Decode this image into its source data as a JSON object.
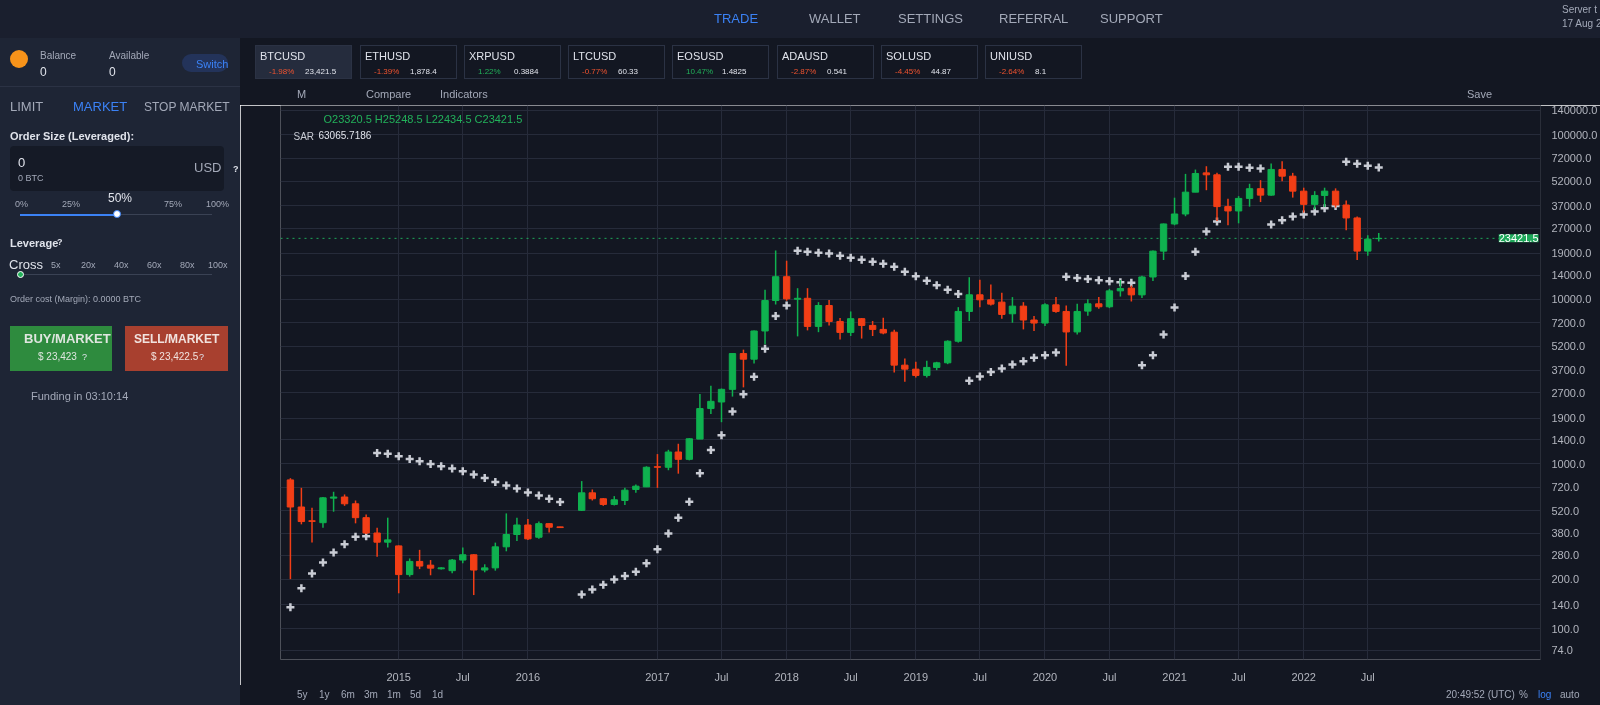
{
  "chart_data": {
    "type": "candlestick",
    "x": [
      "2014-03",
      "2014-04",
      "2014-05",
      "2014-06",
      "2014-07",
      "2014-08",
      "2014-09",
      "2014-10",
      "2014-11",
      "2014-12",
      "2015-01",
      "2015-02",
      "2015-03",
      "2015-04",
      "2015-05",
      "2015-06",
      "2015-07",
      "2015-08",
      "2015-09",
      "2015-10",
      "2015-11",
      "2015-12",
      "2016-01",
      "2016-02",
      "2016-03",
      "2016-04",
      "2016-06",
      "2016-07",
      "2016-08",
      "2016-09",
      "2016-10",
      "2016-11",
      "2016-12",
      "2017-01",
      "2017-02",
      "2017-03",
      "2017-04",
      "2017-05",
      "2017-06",
      "2017-07",
      "2017-08",
      "2017-09",
      "2017-10",
      "2017-11",
      "2017-12",
      "2018-01",
      "2018-02",
      "2018-03",
      "2018-04",
      "2018-05",
      "2018-06",
      "2018-07",
      "2018-08",
      "2018-09",
      "2018-10",
      "2018-11",
      "2018-12",
      "2019-01",
      "2019-02",
      "2019-03",
      "2019-04",
      "2019-05",
      "2019-06",
      "2019-07",
      "2019-08",
      "2019-09",
      "2019-10",
      "2019-11",
      "2019-12",
      "2020-01",
      "2020-02",
      "2020-03",
      "2020-04",
      "2020-05",
      "2020-06",
      "2020-07",
      "2020-08",
      "2020-09",
      "2020-10",
      "2020-11",
      "2020-12",
      "2021-01",
      "2021-02",
      "2021-03",
      "2021-04",
      "2021-05",
      "2021-06",
      "2021-07",
      "2021-08",
      "2021-09",
      "2021-10",
      "2021-11",
      "2021-12",
      "2022-01",
      "2022-02",
      "2022-03",
      "2022-04",
      "2022-05",
      "2022-06",
      "2022-07",
      "2022-08"
    ],
    "ohlc": [
      [
        800,
        820,
        200,
        548
      ],
      [
        548,
        716,
        430,
        447
      ],
      [
        452,
        542,
        333,
        448
      ],
      [
        440,
        630,
        410,
        623
      ],
      [
        620,
        678,
        513,
        630
      ],
      [
        630,
        653,
        557,
        573
      ],
      [
        573,
        600,
        436,
        472
      ],
      [
        472,
        494,
        375,
        381
      ],
      [
        381,
        410,
        273,
        335
      ],
      [
        335,
        472,
        311,
        346
      ],
      [
        318,
        320,
        164,
        213
      ],
      [
        213,
        267,
        207,
        256
      ],
      [
        256,
        301,
        230,
        240
      ],
      [
        243,
        261,
        211,
        233
      ],
      [
        231,
        236,
        229,
        234
      ],
      [
        225,
        265,
        217,
        261
      ],
      [
        261,
        311,
        250,
        281
      ],
      [
        281,
        283,
        160,
        227
      ],
      [
        227,
        246,
        220,
        234
      ],
      [
        234,
        333,
        225,
        314
      ],
      [
        314,
        501,
        295,
        373
      ],
      [
        373,
        472,
        341,
        426
      ],
      [
        426,
        464,
        346,
        351
      ],
      [
        359,
        447,
        352,
        434
      ],
      [
        434,
        436,
        383,
        413
      ],
      [
        415,
        416,
        410,
        411
      ],
      [
        523,
        787,
        518,
        668
      ],
      [
        668,
        700,
        600,
        615
      ],
      [
        615,
        620,
        557,
        568
      ],
      [
        568,
        638,
        560,
        606
      ],
      [
        600,
        716,
        563,
        693
      ],
      [
        700,
        750,
        668,
        733
      ],
      [
        726,
        968,
        724,
        955
      ],
      [
        962,
        1148,
        716,
        955
      ],
      [
        955,
        1219,
        916,
        1182
      ],
      [
        1182,
        1326,
        873,
        1067
      ],
      [
        1067,
        1433,
        1052,
        1422
      ],
      [
        1416,
        2658,
        1416,
        2169
      ],
      [
        2169,
        2988,
        2013,
        2400
      ],
      [
        2378,
        2870,
        1793,
        2838
      ],
      [
        2838,
        4680,
        2564,
        4680
      ],
      [
        4680,
        4944,
        2917,
        4325
      ],
      [
        4325,
        6470,
        4074,
        6416
      ],
      [
        6416,
        11400,
        5326,
        9826
      ],
      [
        9826,
        19770,
        9290,
        13700
      ],
      [
        13700,
        17130,
        9800,
        10050
      ],
      [
        10000,
        11670,
        5950,
        10130
      ],
      [
        10130,
        11670,
        6470,
        6840
      ],
      [
        6840,
        9600,
        6310,
        9160
      ],
      [
        9160,
        9910,
        6935,
        7330
      ],
      [
        7330,
        7690,
        5690,
        6290
      ],
      [
        6290,
        8430,
        5980,
        7620
      ],
      [
        7620,
        7690,
        5770,
        6935
      ],
      [
        6935,
        7380,
        5980,
        6560
      ],
      [
        6560,
        7730,
        6120,
        6240
      ],
      [
        6310,
        6530,
        3597,
        3980
      ],
      [
        3980,
        4365,
        3157,
        3763
      ],
      [
        3763,
        4170,
        3350,
        3447
      ],
      [
        3447,
        4230,
        3350,
        3855
      ],
      [
        3855,
        4170,
        3710,
        4112
      ],
      [
        4112,
        5630,
        4035,
        5560
      ],
      [
        5560,
        8950,
        5455,
        8430
      ],
      [
        8430,
        13600,
        7380,
        10640
      ],
      [
        10640,
        13150,
        8950,
        9920
      ],
      [
        9920,
        12270,
        9160,
        9340
      ],
      [
        9600,
        10930,
        7620,
        8085
      ],
      [
        8160,
        10300,
        7200,
        9080
      ],
      [
        9080,
        9600,
        6560,
        7480
      ],
      [
        7480,
        7910,
        6420,
        7170
      ],
      [
        7170,
        9470,
        6880,
        9250
      ],
      [
        9250,
        10300,
        8280,
        8430
      ],
      [
        8430,
        9160,
        3945,
        6330
      ],
      [
        6330,
        9380,
        6100,
        8430
      ],
      [
        8470,
        10000,
        7940,
        9380
      ],
      [
        9380,
        10330,
        8750,
        9000
      ],
      [
        9000,
        11560,
        8830,
        11240
      ],
      [
        11240,
        13090,
        10380,
        11610
      ],
      [
        11670,
        12100,
        9690,
        10630
      ],
      [
        10630,
        13900,
        10190,
        13650
      ],
      [
        13650,
        19750,
        12900,
        19590
      ],
      [
        19590,
        28800,
        17300,
        28640
      ],
      [
        28640,
        41350,
        28120,
        32920
      ],
      [
        32920,
        57680,
        31900,
        44670
      ],
      [
        44670,
        61260,
        44670,
        58000
      ],
      [
        58500,
        64200,
        45900,
        56930
      ],
      [
        56930,
        58500,
        29900,
        36500
      ],
      [
        36500,
        40740,
        28120,
        34350
      ],
      [
        34350,
        42270,
        28900,
        40930
      ],
      [
        40930,
        50230,
        36500,
        46880
      ],
      [
        46880,
        52840,
        38900,
        42850
      ],
      [
        42850,
        66680,
        42530,
        61380
      ],
      [
        61380,
        68840,
        52100,
        55850
      ],
      [
        55850,
        58500,
        41400,
        45300
      ],
      [
        45300,
        47550,
        33570,
        37670
      ],
      [
        37670,
        45300,
        35160,
        42660
      ],
      [
        42660,
        47550,
        36300,
        45300
      ],
      [
        45300,
        47100,
        35970,
        37330
      ],
      [
        37330,
        39810,
        26240,
        31150
      ],
      [
        31150,
        31750,
        17300,
        19600
      ],
      [
        19600,
        24490,
        18370,
        23170
      ],
      [
        23320.5,
        25248.5,
        22434.5,
        23421.5
      ]
    ],
    "colors": [
      "#f23e16",
      "#f23e16",
      "#f23e16",
      "#0fb14f",
      "#0fb14f",
      "#f23e16",
      "#f23e16",
      "#f23e16",
      "#f23e16",
      "#0fb14f",
      "#f23e16",
      "#0fb14f",
      "#f23e16",
      "#f23e16",
      "#0fb14f",
      "#0fb14f",
      "#0fb14f",
      "#f23e16",
      "#0fb14f",
      "#0fb14f",
      "#0fb14f",
      "#0fb14f",
      "#f23e16",
      "#0fb14f",
      "#f23e16",
      "#f23e16",
      "#0fb14f",
      "#f23e16",
      "#f23e16",
      "#0fb14f",
      "#0fb14f",
      "#0fb14f",
      "#0fb14f",
      "#f23e16",
      "#0fb14f",
      "#f23e16",
      "#0fb14f",
      "#0fb14f",
      "#0fb14f",
      "#0fb14f",
      "#0fb14f",
      "#f23e16",
      "#0fb14f",
      "#0fb14f",
      "#0fb14f",
      "#f23e16",
      "#0fb14f",
      "#f23e16",
      "#0fb14f",
      "#f23e16",
      "#f23e16",
      "#0fb14f",
      "#f23e16",
      "#f23e16",
      "#f23e16",
      "#f23e16",
      "#f23e16",
      "#f23e16",
      "#0fb14f",
      "#0fb14f",
      "#0fb14f",
      "#0fb14f",
      "#0fb14f",
      "#f23e16",
      "#f23e16",
      "#f23e16",
      "#0fb14f",
      "#f23e16",
      "#f23e16",
      "#0fb14f",
      "#f23e16",
      "#f23e16",
      "#0fb14f",
      "#0fb14f",
      "#f23e16",
      "#0fb14f",
      "#0fb14f",
      "#f23e16",
      "#0fb14f",
      "#0fb14f",
      "#0fb14f",
      "#0fb14f",
      "#0fb14f",
      "#0fb14f",
      "#f23e16",
      "#f23e16",
      "#f23e16",
      "#0fb14f",
      "#0fb14f",
      "#f23e16",
      "#0fb14f",
      "#f23e16",
      "#f23e16",
      "#f23e16",
      "#0fb14f",
      "#0fb14f",
      "#f23e16",
      "#f23e16",
      "#f23e16",
      "#0fb14f",
      "#0fb14f"
    ],
    "series": [
      {
        "name": "SAR",
        "type": "scatter",
        "marker": "cross",
        "color": "#c9ccd4",
        "values": [
          135,
          176,
          216,
          252,
          290,
          326,
          361,
          364,
          1165,
          1154,
          1113,
          1072,
          1038,
          1000,
          969,
          937,
          903,
          862,
          823,
          778,
          740,
          709,
          671,
          644,
          615,
          587,
          161,
          173,
          185,
          199,
          209,
          222,
          250,
          304,
          378,
          472,
          589,
          879,
          1216,
          1496,
          2080,
          2648,
          3385,
          5000,
          7910,
          9160,
          19680,
          19410,
          19140,
          18980,
          18360,
          17860,
          17380,
          16900,
          16430,
          15760,
          14690,
          13770,
          12970,
          12160,
          11400,
          10740,
          3203,
          3397,
          3610,
          3800,
          4018,
          4207,
          4407,
          4570,
          4748,
          13710,
          13460,
          13270,
          13040,
          12860,
          12680,
          12570,
          3980,
          4570,
          6100,
          8910,
          13840,
          19410,
          25760,
          29630,
          63680,
          63680,
          62800,
          62100,
          28420,
          30140,
          31770,
          32680,
          34060,
          35650,
          36810,
          68230,
          66370,
          64560,
          63066
        ]
      }
    ],
    "log": "y",
    "grid": true,
    "xlim": [
      "2014-02-01",
      "2023-11-01"
    ],
    "xticks": [
      {
        "value": "2015-01",
        "label": "2015"
      },
      {
        "value": "2015-07",
        "label": "Jul"
      },
      {
        "value": "2016-01",
        "label": "2016"
      },
      {
        "value": "2017-01",
        "label": "2017"
      },
      {
        "value": "2017-07",
        "label": "Jul"
      },
      {
        "value": "2018-01",
        "label": "2018"
      },
      {
        "value": "2018-07",
        "label": "Jul"
      },
      {
        "value": "2019-01",
        "label": "2019"
      },
      {
        "value": "2019-07",
        "label": "Jul"
      },
      {
        "value": "2020-01",
        "label": "2020"
      },
      {
        "value": "2020-07",
        "label": "Jul"
      },
      {
        "value": "2021-01",
        "label": "2021"
      },
      {
        "value": "2021-07",
        "label": "Jul"
      },
      {
        "value": "2022-01",
        "label": "2022"
      },
      {
        "value": "2022-07",
        "label": "Jul"
      }
    ],
    "ylim": [
      65,
      150000
    ],
    "yticks": [
      {
        "value": 74,
        "label": "74.0"
      },
      {
        "value": 100,
        "label": "100.0"
      },
      {
        "value": 140,
        "label": "140.0"
      },
      {
        "value": 200,
        "label": "200.0"
      },
      {
        "value": 280,
        "label": "280.0"
      },
      {
        "value": 380,
        "label": "380.0"
      },
      {
        "value": 520,
        "label": "520.0"
      },
      {
        "value": 720,
        "label": "720.0"
      },
      {
        "value": 1000,
        "label": "1000.0"
      },
      {
        "value": 1400,
        "label": "1400.0"
      },
      {
        "value": 1900,
        "label": "1900.0"
      },
      {
        "value": 2700,
        "label": "2700.0"
      },
      {
        "value": 3700,
        "label": "3700.0"
      },
      {
        "value": 5200,
        "label": "5200.0"
      },
      {
        "value": 7200,
        "label": "7200.0"
      },
      {
        "value": 10000,
        "label": "10000.0"
      },
      {
        "value": 14000,
        "label": "14000.0"
      },
      {
        "value": 19000,
        "label": "19000.0"
      },
      {
        "value": 27000,
        "label": "27000.0"
      },
      {
        "value": 37000,
        "label": "37000.0"
      },
      {
        "value": 52000,
        "label": "52000.0"
      },
      {
        "value": 72000,
        "label": "72000.0"
      },
      {
        "value": 100000,
        "label": "100000.0"
      },
      {
        "value": 140000,
        "label": "140000.0"
      }
    ],
    "ref_lines": [
      {
        "axis": "y",
        "value": 23421.5,
        "label": "23421.5",
        "color": "#1fa85a",
        "line_style": "dotted"
      }
    ],
    "annotations": [
      "TRADE",
      "WALLET",
      "SETTINGS",
      "REFERRAL",
      "SUPPORT",
      "Server t",
      "17 Aug 2",
      "Balance",
      "0",
      "Available",
      "0",
      "Switch",
      "LIMIT",
      "MARKET",
      "STOP MARKET",
      "Order Size (Leveraged):",
      "0",
      "0 BTC",
      "USD",
      "?",
      "0%",
      "25%",
      "50%",
      "75%",
      "100%",
      "Leverage",
      "?",
      "Cross",
      "5x",
      "20x",
      "40x",
      "60x",
      "80x",
      "100x",
      "Order cost (Margin): 0.0000 BTC",
      "BUY/MARKET",
      "$ 23,423",
      "?",
      "SELL/MARKET",
      "$ 23,422.5",
      "?",
      "Funding in 03:10:14",
      "BTCUSD",
      "-1.98%",
      "23,421.5",
      "ETHUSD",
      "-1.39%",
      "1,878.4",
      "XRPUSD",
      "1.22%",
      "0.3884",
      "LTCUSD",
      "-0.77%",
      "60.33",
      "EOSUSD",
      "10.47%",
      "1.4825",
      "ADAUSD",
      "-2.87%",
      "0.541",
      "SOLUSD",
      "-4.45%",
      "44.87",
      "UNIUSD",
      "-2.64%",
      "8.1",
      "M",
      "Compare",
      "Indicators",
      "Save",
      "O23320.5 H25248.5 L22434.5 C23421.5",
      "63065.7186",
      "5y",
      "1y",
      "6m",
      "3m",
      "1m",
      "5d",
      "1d",
      "20:49:52 (UTC)",
      "%",
      "log",
      "auto"
    ]
  }
}
